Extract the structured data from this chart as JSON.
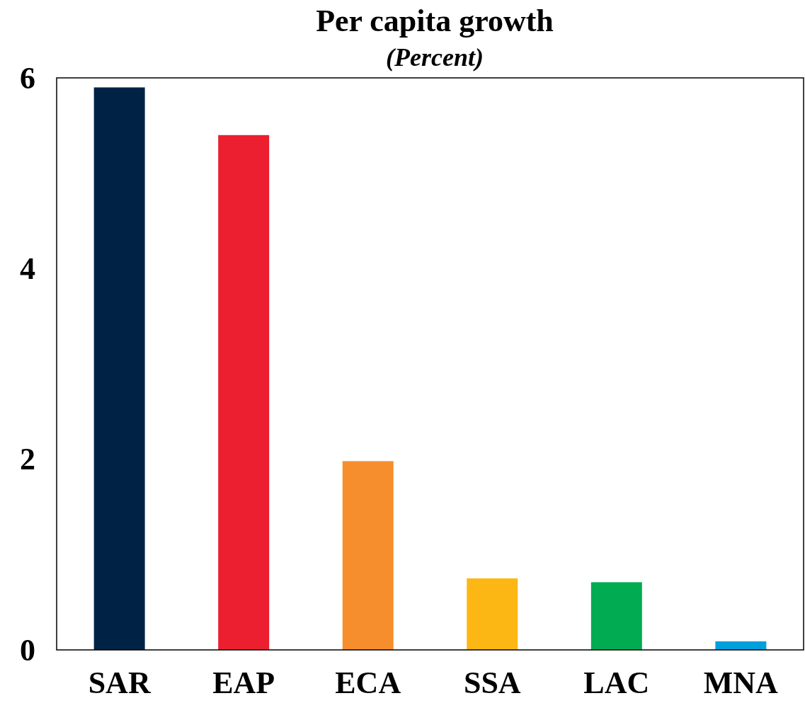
{
  "chart_data": {
    "type": "bar",
    "title": "Per capita growth",
    "subtitle": "(Percent)",
    "categories": [
      "SAR",
      "EAP",
      "ECA",
      "SSA",
      "LAC",
      "MNA"
    ],
    "values": [
      5.9,
      5.4,
      1.98,
      0.75,
      0.71,
      0.09
    ],
    "colors": [
      "#002345",
      "#eb1f2f",
      "#f68e2d",
      "#fdb714",
      "#00ab51",
      "#00a0dd"
    ],
    "ylim": [
      0,
      6
    ],
    "yticks": [
      0,
      2,
      4,
      6
    ],
    "grid": false
  }
}
